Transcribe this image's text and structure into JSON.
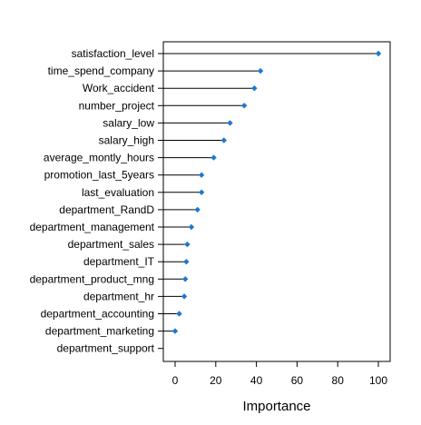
{
  "chart_data": {
    "type": "dotplot",
    "title": "",
    "xlabel": "Importance",
    "ylabel": "",
    "xlim": [
      -5,
      105
    ],
    "xticks": [
      0,
      20,
      40,
      60,
      80,
      100
    ],
    "grid": false,
    "legend": "none",
    "colors": {
      "point": "#1f78d1",
      "line": "#000000",
      "frame": "#000000"
    },
    "categories": [
      "satisfaction_level",
      "time_spend_company",
      "Work_accident",
      "number_project",
      "salary_low",
      "salary_high",
      "average_montly_hours",
      "promotion_last_5years",
      "last_evaluation",
      "department_RandD",
      "department_management",
      "department_sales",
      "department_IT",
      "department_product_mng",
      "department_hr",
      "department_accounting",
      "department_marketing",
      "department_support"
    ],
    "values": [
      100,
      42,
      39,
      34,
      27,
      24,
      19,
      13,
      13,
      11,
      8,
      6,
      5.5,
      5,
      4.5,
      2,
      0,
      null
    ]
  }
}
